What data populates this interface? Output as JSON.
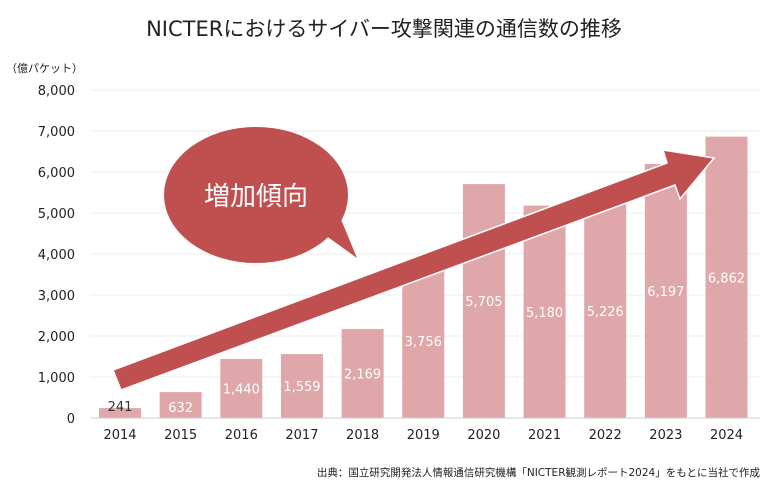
{
  "chart_data": {
    "type": "bar",
    "title": "NICTERにおけるサイバー攻撃関連の通信数の推移",
    "ylabel": "（億パケット）",
    "xlabel": "",
    "ylim": [
      0,
      8000
    ],
    "yticks": [
      0,
      1000,
      2000,
      3000,
      4000,
      5000,
      6000,
      7000,
      8000
    ],
    "ytick_labels": [
      "0",
      "1,000",
      "2,000",
      "3,000",
      "4,000",
      "5,000",
      "6,000",
      "7,000",
      "8,000"
    ],
    "categories": [
      "2014",
      "2015",
      "2016",
      "2017",
      "2018",
      "2019",
      "2020",
      "2021",
      "2022",
      "2023",
      "2024"
    ],
    "values": [
      241,
      632,
      1440,
      1559,
      2169,
      3756,
      5705,
      5180,
      5226,
      6197,
      6862
    ],
    "data_labels": [
      "241",
      "632",
      "1,440",
      "1,559",
      "2,169",
      "3,756",
      "5,705",
      "5,180",
      "5,226",
      "6,197",
      "6,862"
    ],
    "grid": true,
    "annotation": "増加傾向",
    "source": "出典：国立研究開発法人情報通信研究機構「NICTER観測レポート2024」をもとに当社で作成"
  },
  "colors": {
    "bar": "#dfa7a9",
    "accent": "#c0504f",
    "grid": "#eeeeee"
  }
}
